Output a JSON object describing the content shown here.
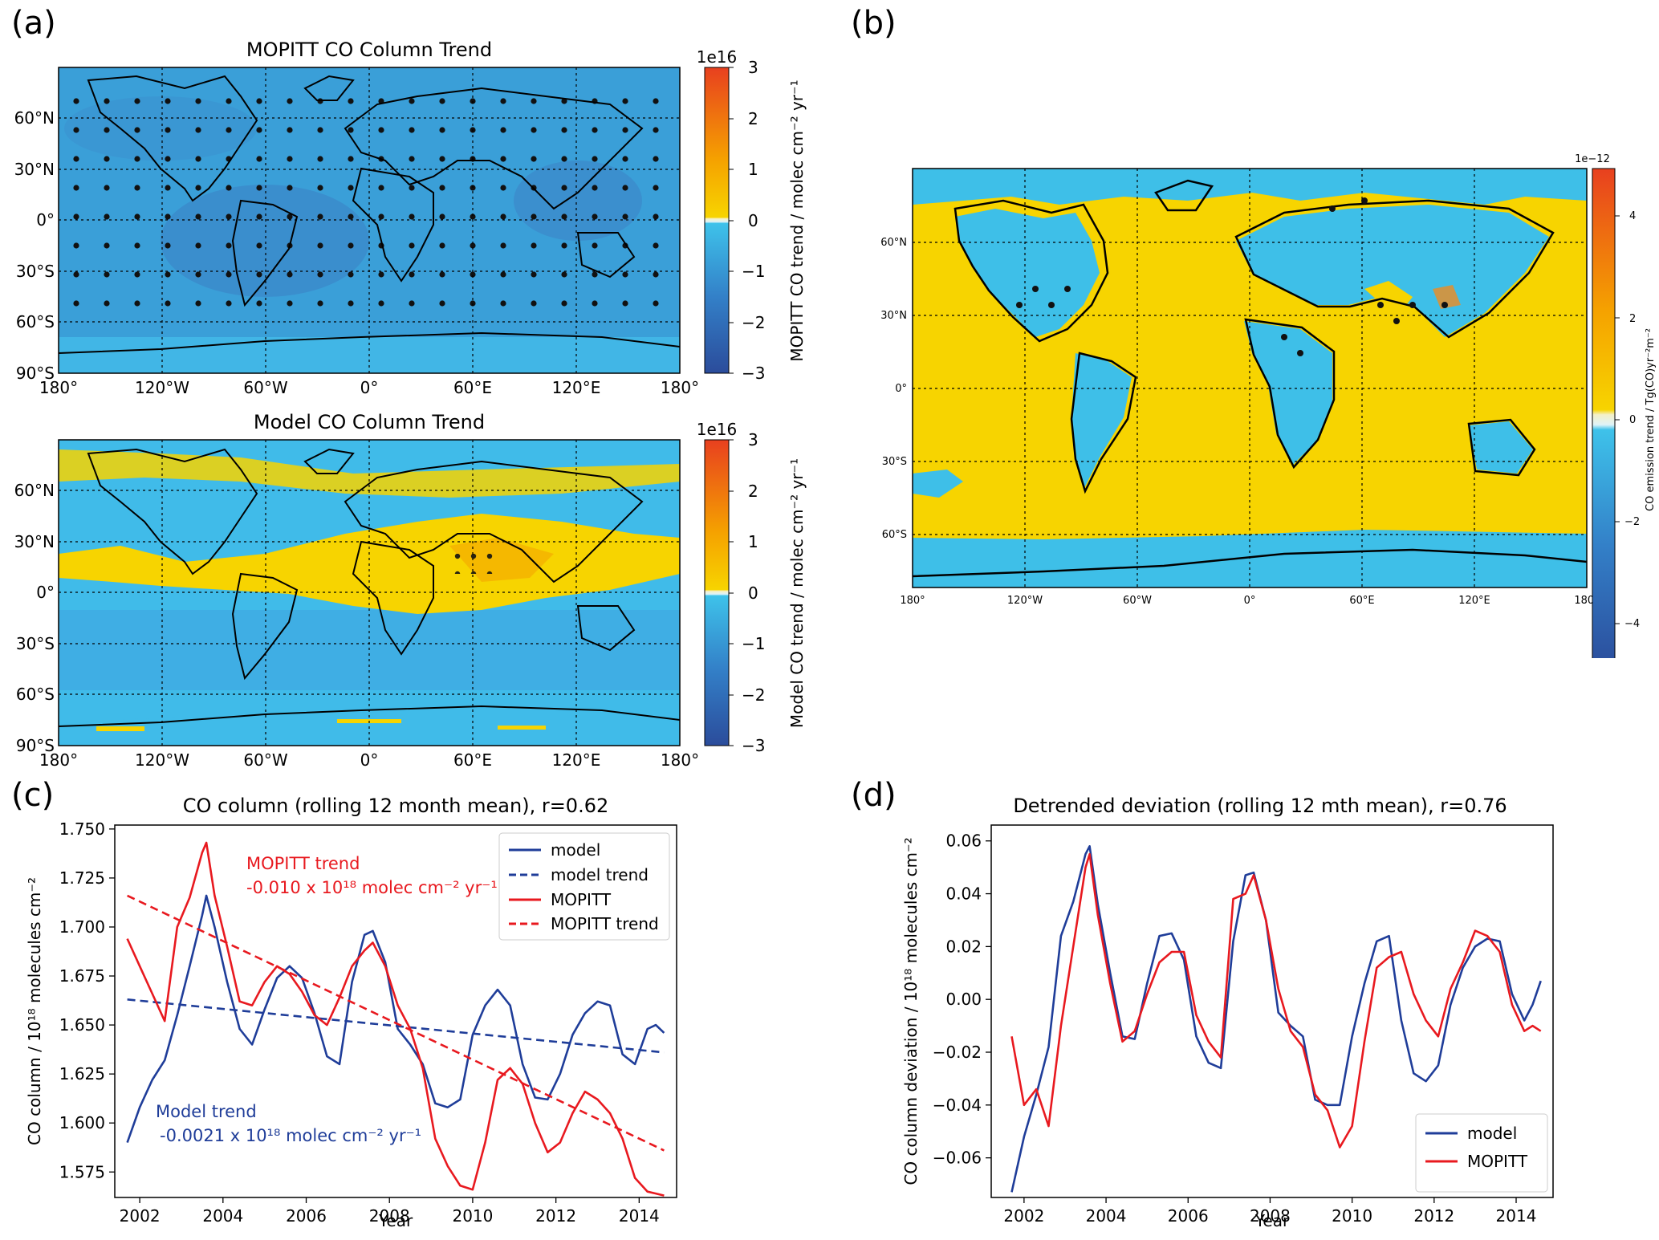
{
  "panels": {
    "a": {
      "letter": "(a)",
      "top_map": {
        "title": "MOPITT CO Column Trend",
        "colorbar": {
          "exponent": "1e16",
          "label": "MOPITT CO trend / molec cm⁻² yr⁻¹",
          "ticks": [
            "3",
            "2",
            "1",
            "0",
            "−1",
            "−2",
            "−3"
          ]
        }
      },
      "bottom_map": {
        "title": "Model CO Column Trend",
        "colorbar": {
          "exponent": "1e16",
          "label": "Model CO trend / molec cm⁻² yr⁻¹",
          "ticks": [
            "3",
            "2",
            "1",
            "0",
            "−1",
            "−2",
            "−3"
          ]
        }
      },
      "lat_ticks": [
        "60°N",
        "30°N",
        "0°",
        "30°S",
        "60°S",
        "90°S"
      ],
      "lon_ticks": [
        "180°",
        "120°W",
        "60°W",
        "0°",
        "60°E",
        "120°E",
        "180°"
      ]
    },
    "b": {
      "letter": "(b)",
      "colorbar": {
        "exponent": "1e−12",
        "label": "CO emission trend / Tg(CO)yr⁻²m⁻²",
        "ticks": [
          "4",
          "2",
          "0",
          "−2",
          "−4"
        ]
      },
      "lat_ticks": [
        "60°N",
        "30°N",
        "0°",
        "30°S",
        "60°S"
      ],
      "lon_ticks": [
        "180°",
        "120°W",
        "60°W",
        "0°",
        "60°E",
        "120°E",
        "180°"
      ]
    },
    "c": {
      "letter": "(c)",
      "title": "CO column (rolling 12 month mean), r=0.62",
      "ylabel": "CO column / 10¹⁸ molecules cm⁻²",
      "xlabel": "Year",
      "annotations": {
        "mopitt_trend_title": "MOPITT trend",
        "mopitt_trend_value": "-0.010 x 10¹⁸ molec cm⁻² yr⁻¹",
        "model_trend_title": "Model trend",
        "model_trend_value": "-0.0021 x 10¹⁸ molec cm⁻² yr⁻¹"
      },
      "legend": [
        "model",
        "model trend",
        "MOPITT",
        "MOPITT trend"
      ]
    },
    "d": {
      "letter": "(d)",
      "title": "Detrended deviation (rolling 12 mth mean), r=0.76",
      "ylabel": "CO column deviation / 10¹⁸ molecules cm⁻²",
      "xlabel": "Year",
      "legend": [
        "model",
        "MOPITT"
      ]
    }
  },
  "colors": {
    "model": "#1f3d99",
    "mopitt": "#e8191f",
    "ocean": "#3ebfe8",
    "land_pos": "#f7d400",
    "ocean_dark": "#3e9fd8"
  },
  "chart_data": [
    {
      "type": "line",
      "title": "CO column (rolling 12 month mean), r=0.62",
      "xlabel": "Year",
      "ylabel": "CO column / 10¹⁸ molecules cm⁻²",
      "xlim": [
        2001.4,
        2014.9
      ],
      "ylim": [
        1.562,
        1.752
      ],
      "xticks": [
        2002,
        2004,
        2006,
        2008,
        2010,
        2012,
        2014
      ],
      "yticks": [
        1.575,
        1.6,
        1.625,
        1.65,
        1.675,
        1.7,
        1.725,
        1.75
      ],
      "legend_position": "top-right",
      "series": [
        {
          "name": "model",
          "style": "solid",
          "color": "#1f3d99",
          "x": [
            2001.7,
            2002.0,
            2002.3,
            2002.6,
            2002.9,
            2003.2,
            2003.5,
            2003.6,
            2003.8,
            2004.1,
            2004.4,
            2004.7,
            2005.0,
            2005.3,
            2005.6,
            2005.9,
            2006.2,
            2006.5,
            2006.8,
            2007.1,
            2007.4,
            2007.6,
            2007.9,
            2008.2,
            2008.5,
            2008.8,
            2009.1,
            2009.4,
            2009.7,
            2010.0,
            2010.3,
            2010.6,
            2010.9,
            2011.2,
            2011.5,
            2011.8,
            2012.1,
            2012.4,
            2012.7,
            2013.0,
            2013.3,
            2013.6,
            2013.9,
            2014.2,
            2014.4,
            2014.6
          ],
          "y": [
            1.59,
            1.608,
            1.622,
            1.632,
            1.655,
            1.68,
            1.706,
            1.716,
            1.7,
            1.672,
            1.648,
            1.64,
            1.658,
            1.674,
            1.68,
            1.674,
            1.656,
            1.634,
            1.63,
            1.672,
            1.696,
            1.698,
            1.682,
            1.648,
            1.64,
            1.63,
            1.61,
            1.608,
            1.612,
            1.645,
            1.66,
            1.668,
            1.66,
            1.63,
            1.613,
            1.612,
            1.625,
            1.645,
            1.656,
            1.662,
            1.66,
            1.635,
            1.63,
            1.648,
            1.65,
            1.646
          ]
        },
        {
          "name": "model trend",
          "style": "dashed",
          "color": "#1f3d99",
          "x": [
            2001.7,
            2014.6
          ],
          "y": [
            1.663,
            1.636
          ]
        },
        {
          "name": "MOPITT",
          "style": "solid",
          "color": "#e8191f",
          "x": [
            2001.7,
            2002.0,
            2002.3,
            2002.6,
            2002.9,
            2003.2,
            2003.5,
            2003.6,
            2003.8,
            2004.1,
            2004.4,
            2004.7,
            2005.0,
            2005.3,
            2005.6,
            2005.9,
            2006.2,
            2006.5,
            2006.8,
            2007.1,
            2007.4,
            2007.6,
            2007.9,
            2008.2,
            2008.5,
            2008.8,
            2009.1,
            2009.4,
            2009.7,
            2010.0,
            2010.3,
            2010.6,
            2010.9,
            2011.2,
            2011.5,
            2011.8,
            2012.1,
            2012.4,
            2012.7,
            2013.0,
            2013.3,
            2013.6,
            2013.9,
            2014.2,
            2014.4,
            2014.6
          ],
          "y": [
            1.694,
            1.68,
            1.666,
            1.652,
            1.7,
            1.715,
            1.738,
            1.743,
            1.716,
            1.69,
            1.662,
            1.66,
            1.672,
            1.68,
            1.676,
            1.667,
            1.655,
            1.65,
            1.664,
            1.68,
            1.688,
            1.692,
            1.68,
            1.66,
            1.648,
            1.628,
            1.592,
            1.578,
            1.568,
            1.566,
            1.59,
            1.622,
            1.628,
            1.62,
            1.6,
            1.585,
            1.59,
            1.605,
            1.616,
            1.612,
            1.605,
            1.592,
            1.572,
            1.565,
            1.564,
            1.563
          ]
        },
        {
          "name": "MOPITT trend",
          "style": "dashed",
          "color": "#e8191f",
          "x": [
            2001.7,
            2014.6
          ],
          "y": [
            1.716,
            1.586
          ]
        }
      ]
    },
    {
      "type": "line",
      "title": "Detrended deviation (rolling 12 mth mean), r=0.76",
      "xlabel": "Year",
      "ylabel": "CO column deviation / 10¹⁸ molecules cm⁻²",
      "xlim": [
        2001.2,
        2014.9
      ],
      "ylim": [
        -0.075,
        0.066
      ],
      "xticks": [
        2002,
        2004,
        2006,
        2008,
        2010,
        2012,
        2014
      ],
      "yticks": [
        -0.06,
        -0.04,
        -0.02,
        0.0,
        0.02,
        0.04,
        0.06
      ],
      "legend_position": "bottom-right",
      "series": [
        {
          "name": "model",
          "color": "#1f3d99",
          "x": [
            2001.7,
            2002.0,
            2002.3,
            2002.6,
            2002.9,
            2003.2,
            2003.5,
            2003.6,
            2003.8,
            2004.1,
            2004.4,
            2004.7,
            2005.0,
            2005.3,
            2005.6,
            2005.9,
            2006.2,
            2006.5,
            2006.8,
            2007.1,
            2007.4,
            2007.6,
            2007.9,
            2008.2,
            2008.5,
            2008.8,
            2009.1,
            2009.4,
            2009.7,
            2010.0,
            2010.3,
            2010.6,
            2010.9,
            2011.2,
            2011.5,
            2011.8,
            2012.1,
            2012.4,
            2012.7,
            2013.0,
            2013.3,
            2013.6,
            2013.9,
            2014.2,
            2014.4,
            2014.6
          ],
          "y": [
            -0.073,
            -0.052,
            -0.036,
            -0.018,
            0.024,
            0.037,
            0.055,
            0.058,
            0.036,
            0.01,
            -0.014,
            -0.015,
            0.006,
            0.024,
            0.025,
            0.015,
            -0.014,
            -0.024,
            -0.026,
            0.022,
            0.047,
            0.048,
            0.03,
            -0.005,
            -0.01,
            -0.014,
            -0.038,
            -0.04,
            -0.04,
            -0.014,
            0.006,
            0.022,
            0.024,
            -0.008,
            -0.028,
            -0.031,
            -0.025,
            -0.002,
            0.012,
            0.02,
            0.023,
            0.022,
            0.002,
            -0.008,
            -0.002,
            0.007
          ]
        },
        {
          "name": "MOPITT",
          "color": "#e8191f",
          "x": [
            2001.7,
            2002.0,
            2002.3,
            2002.6,
            2002.9,
            2003.2,
            2003.5,
            2003.6,
            2003.8,
            2004.1,
            2004.4,
            2004.7,
            2005.0,
            2005.3,
            2005.6,
            2005.9,
            2006.2,
            2006.5,
            2006.8,
            2007.1,
            2007.4,
            2007.6,
            2007.9,
            2008.2,
            2008.5,
            2008.8,
            2009.1,
            2009.4,
            2009.7,
            2010.0,
            2010.3,
            2010.6,
            2010.9,
            2011.2,
            2011.5,
            2011.8,
            2012.1,
            2012.4,
            2012.7,
            2013.0,
            2013.3,
            2013.6,
            2013.9,
            2014.2,
            2014.4,
            2014.6
          ],
          "y": [
            -0.014,
            -0.04,
            -0.034,
            -0.048,
            -0.01,
            0.02,
            0.05,
            0.055,
            0.032,
            0.006,
            -0.016,
            -0.012,
            0.002,
            0.014,
            0.018,
            0.018,
            -0.006,
            -0.016,
            -0.022,
            0.038,
            0.04,
            0.047,
            0.03,
            0.004,
            -0.012,
            -0.018,
            -0.036,
            -0.042,
            -0.056,
            -0.048,
            -0.016,
            0.012,
            0.016,
            0.018,
            0.002,
            -0.008,
            -0.014,
            0.004,
            0.014,
            0.026,
            0.024,
            0.018,
            -0.002,
            -0.012,
            -0.01,
            -0.012
          ]
        }
      ]
    }
  ]
}
